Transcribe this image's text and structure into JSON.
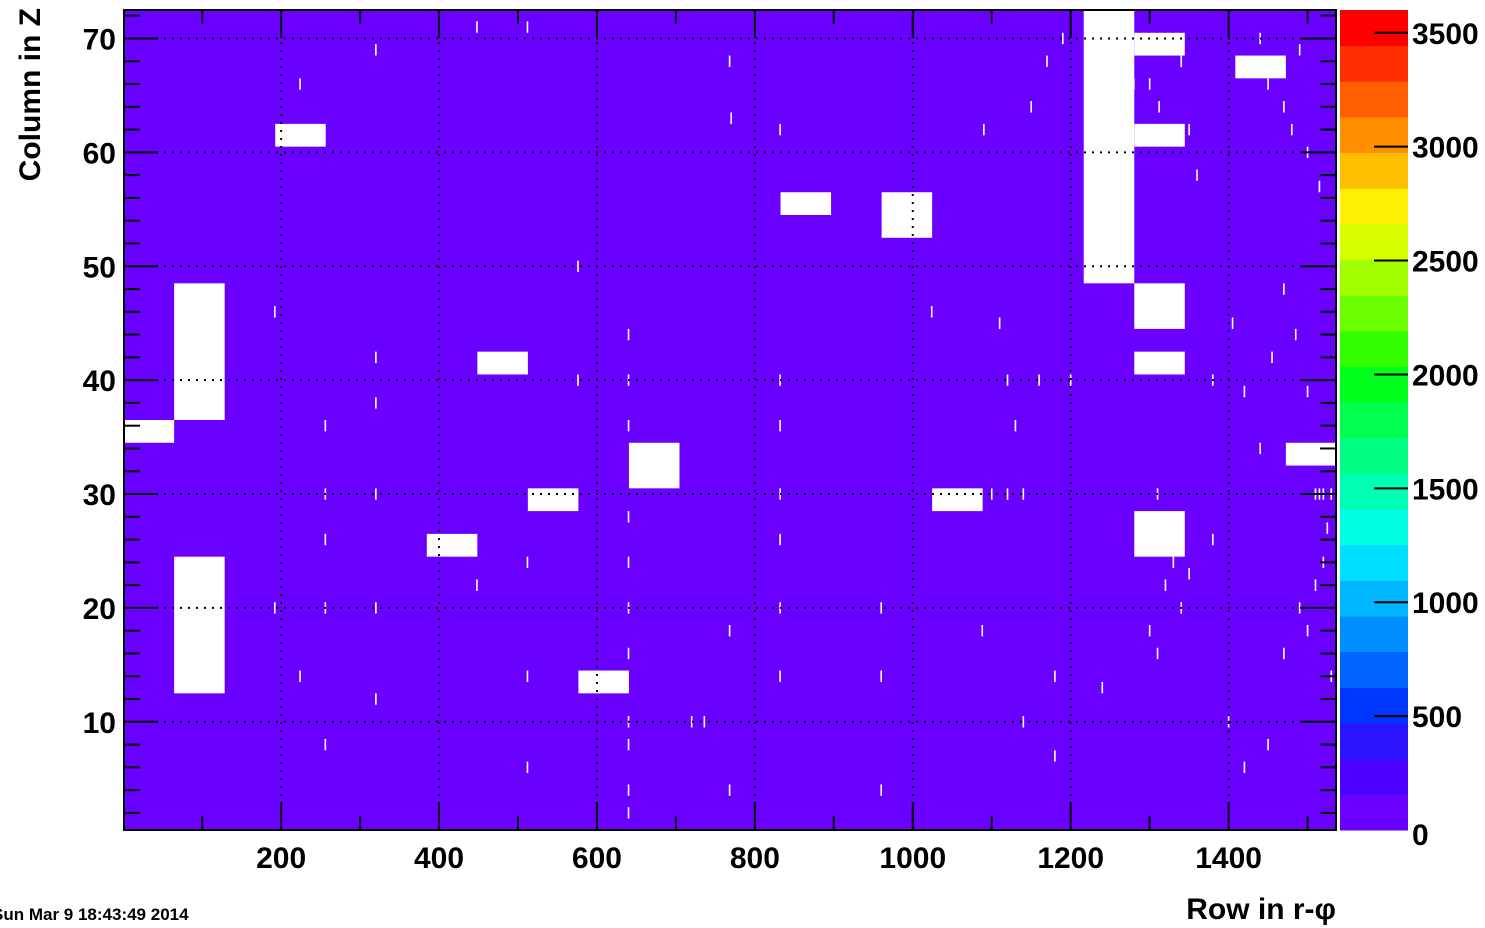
{
  "chart_data": {
    "type": "heatmap",
    "xlabel": "Row in r-φ",
    "ylabel": "Column in Z",
    "xlim": [
      1,
      1536
    ],
    "ylim": [
      0.5,
      72.5
    ],
    "zlim": [
      0,
      3600
    ],
    "grid": true,
    "x_ticks": [
      "200",
      "400",
      "600",
      "800",
      "1000",
      "1200",
      "1400"
    ],
    "x_tick_values": [
      200,
      400,
      600,
      800,
      1000,
      1200,
      1400
    ],
    "y_ticks": [
      "10",
      "20",
      "30",
      "40",
      "50",
      "60",
      "70"
    ],
    "y_tick_values": [
      10,
      20,
      30,
      40,
      50,
      60,
      70
    ],
    "palette_ticks": [
      "0",
      "500",
      "1000",
      "1500",
      "2000",
      "2500",
      "3000",
      "3500"
    ],
    "palette_tick_values": [
      0,
      500,
      1000,
      1500,
      2000,
      2500,
      3000,
      3500
    ],
    "palette_colors": [
      "#6a00ff",
      "#4b00ff",
      "#2b14ff",
      "#0037ff",
      "#0063ff",
      "#008fff",
      "#00b7ff",
      "#00dfff",
      "#00ffe3",
      "#00ffb3",
      "#00ff83",
      "#00ff4f",
      "#00ff1a",
      "#33ff00",
      "#6bff00",
      "#a3ff00",
      "#d8ff00",
      "#ffef00",
      "#ffbf00",
      "#ff8f00",
      "#ff5f00",
      "#ff2f00",
      "#ff0000"
    ],
    "background_value": 0,
    "background_color": "#6a00ff",
    "dead_region_color": "#ffffff",
    "dead_regions": [
      {
        "x": [
          1,
          64
        ],
        "y": [
          34.5,
          36.5
        ]
      },
      {
        "x": [
          65,
          128
        ],
        "y": [
          36.5,
          48.5
        ]
      },
      {
        "x": [
          65,
          128
        ],
        "y": [
          12.5,
          24.5
        ]
      },
      {
        "x": [
          193,
          256
        ],
        "y": [
          60.5,
          62.5
        ]
      },
      {
        "x": [
          385,
          448
        ],
        "y": [
          24.5,
          26.5
        ]
      },
      {
        "x": [
          449,
          512
        ],
        "y": [
          40.5,
          42.5
        ]
      },
      {
        "x": [
          513,
          576
        ],
        "y": [
          28.5,
          30.5
        ]
      },
      {
        "x": [
          577,
          640
        ],
        "y": [
          12.5,
          14.5
        ]
      },
      {
        "x": [
          641,
          704
        ],
        "y": [
          30.5,
          34.5
        ]
      },
      {
        "x": [
          833,
          896
        ],
        "y": [
          54.5,
          56.5
        ]
      },
      {
        "x": [
          961,
          1024
        ],
        "y": [
          52.5,
          56.5
        ]
      },
      {
        "x": [
          1025,
          1088
        ],
        "y": [
          28.5,
          30.5
        ]
      },
      {
        "x": [
          1217,
          1280
        ],
        "y": [
          48.5,
          72.5
        ]
      },
      {
        "x": [
          1281,
          1344
        ],
        "y": [
          68.5,
          70.5
        ]
      },
      {
        "x": [
          1281,
          1344
        ],
        "y": [
          60.5,
          62.5
        ]
      },
      {
        "x": [
          1281,
          1344
        ],
        "y": [
          44.5,
          48.5
        ]
      },
      {
        "x": [
          1281,
          1344
        ],
        "y": [
          40.5,
          42.5
        ]
      },
      {
        "x": [
          1281,
          1344
        ],
        "y": [
          24.5,
          28.5
        ]
      },
      {
        "x": [
          1409,
          1472
        ],
        "y": [
          66.5,
          68.5
        ]
      },
      {
        "x": [
          1473,
          1536
        ],
        "y": [
          32.5,
          34.5
        ]
      }
    ],
    "dead_channels": [
      [
        448,
        71
      ],
      [
        512,
        71
      ],
      [
        320,
        69
      ],
      [
        224,
        66
      ],
      [
        768,
        68
      ],
      [
        770,
        63
      ],
      [
        832,
        62
      ],
      [
        1280,
        66
      ],
      [
        1290,
        70
      ],
      [
        1300,
        66
      ],
      [
        1312,
        64
      ],
      [
        1340,
        68
      ],
      [
        1440,
        70
      ],
      [
        1450,
        66
      ],
      [
        1470,
        64
      ],
      [
        1480,
        62
      ],
      [
        1490,
        69
      ],
      [
        1500,
        60
      ],
      [
        1515,
        57
      ],
      [
        1350,
        62
      ],
      [
        1360,
        58
      ],
      [
        640,
        44
      ],
      [
        640,
        40
      ],
      [
        640,
        36
      ],
      [
        640,
        28
      ],
      [
        640,
        24
      ],
      [
        640,
        20
      ],
      [
        640,
        16
      ],
      [
        640,
        10
      ],
      [
        640,
        8
      ],
      [
        640,
        4
      ],
      [
        640,
        2
      ],
      [
        832,
        40
      ],
      [
        832,
        36
      ],
      [
        832,
        30
      ],
      [
        832,
        26
      ],
      [
        832,
        20
      ],
      [
        832,
        14
      ],
      [
        960,
        20
      ],
      [
        960,
        14
      ],
      [
        1024,
        46
      ],
      [
        1120,
        30
      ],
      [
        1180,
        14
      ],
      [
        1240,
        13
      ],
      [
        1300,
        18
      ],
      [
        1310,
        16
      ],
      [
        1320,
        22
      ],
      [
        1330,
        24
      ],
      [
        1340,
        20
      ],
      [
        1350,
        23
      ],
      [
        1380,
        26
      ],
      [
        1400,
        10
      ],
      [
        1420,
        6
      ],
      [
        1450,
        8
      ],
      [
        1470,
        16
      ],
      [
        1490,
        20
      ],
      [
        1500,
        18
      ],
      [
        1510,
        22
      ],
      [
        1520,
        24
      ],
      [
        1530,
        14
      ],
      [
        1405,
        45
      ],
      [
        1420,
        39
      ],
      [
        1440,
        34
      ],
      [
        1455,
        42
      ],
      [
        1470,
        48
      ],
      [
        1485,
        44
      ],
      [
        1500,
        39
      ],
      [
        1515,
        30
      ],
      [
        1525,
        27
      ],
      [
        320,
        42
      ],
      [
        320,
        38
      ],
      [
        320,
        30
      ],
      [
        320,
        20
      ],
      [
        320,
        12
      ],
      [
        256,
        36
      ],
      [
        256,
        30
      ],
      [
        256,
        26
      ],
      [
        256,
        20
      ],
      [
        256,
        8
      ],
      [
        224,
        14
      ],
      [
        192,
        20
      ],
      [
        192,
        46
      ],
      [
        448,
        22
      ],
      [
        512,
        24
      ],
      [
        512,
        14
      ],
      [
        512,
        6
      ],
      [
        576,
        50
      ],
      [
        576,
        40
      ],
      [
        768,
        4
      ],
      [
        768,
        18
      ],
      [
        736,
        10
      ],
      [
        720,
        10
      ],
      [
        960,
        4
      ],
      [
        1088,
        18
      ],
      [
        1160,
        40
      ],
      [
        1200,
        40
      ],
      [
        1380,
        40
      ],
      [
        1140,
        30
      ],
      [
        1310,
        30
      ],
      [
        1510,
        30
      ],
      [
        1520,
        30
      ],
      [
        1530,
        30
      ],
      [
        1090,
        62
      ],
      [
        1150,
        64
      ],
      [
        1170,
        68
      ],
      [
        1190,
        70
      ],
      [
        1240,
        68
      ],
      [
        1180,
        7
      ],
      [
        1140,
        10
      ],
      [
        1120,
        40
      ],
      [
        1110,
        45
      ],
      [
        1100,
        30
      ],
      [
        1130,
        36
      ]
    ]
  },
  "footer": {
    "timestamp": "Sun Mar  9 18:43:49 2014"
  }
}
